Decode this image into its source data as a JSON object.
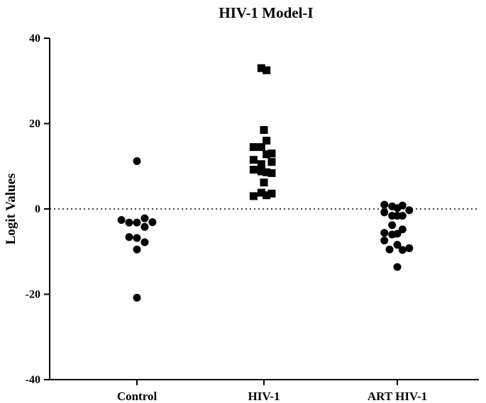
{
  "chart_data": {
    "type": "scatter",
    "title": "HIV-1 Model-I",
    "xlabel": "",
    "ylabel": "Logit Values",
    "ylim": [
      -40,
      40
    ],
    "yticks": [
      40,
      20,
      0,
      -20,
      -40
    ],
    "ytick_labels": [
      "40",
      "20",
      "0",
      "-20",
      "-40"
    ],
    "reference_line": {
      "y": 0,
      "style": "dotted"
    },
    "grid": false,
    "categories": [
      "Control",
      "HIV-1",
      "ART HIV-1"
    ],
    "series": [
      {
        "name": "Control",
        "marker": "circle",
        "points": [
          {
            "dx": 0,
            "y": 11.2
          },
          {
            "dx": -3,
            "y": -2.6
          },
          {
            "dx": -1.5,
            "y": -3.2
          },
          {
            "dx": 0,
            "y": -3.2
          },
          {
            "dx": 1.5,
            "y": -2.2
          },
          {
            "dx": 3,
            "y": -3.1
          },
          {
            "dx": 1.5,
            "y": -4.2
          },
          {
            "dx": -1.5,
            "y": -6.6
          },
          {
            "dx": 0,
            "y": -6.8
          },
          {
            "dx": 1.5,
            "y": -7.8
          },
          {
            "dx": 0,
            "y": -9.5
          },
          {
            "dx": 0,
            "y": -20.8
          }
        ]
      },
      {
        "name": "HIV-1",
        "marker": "square",
        "points": [
          {
            "dx": -0.5,
            "y": 33
          },
          {
            "dx": 0.5,
            "y": 32.5
          },
          {
            "dx": 0,
            "y": 18.5
          },
          {
            "dx": 0.5,
            "y": 16
          },
          {
            "dx": -2,
            "y": 14.5
          },
          {
            "dx": -0.5,
            "y": 14.5
          },
          {
            "dx": 1.5,
            "y": 13
          },
          {
            "dx": 0.5,
            "y": 12.8
          },
          {
            "dx": -2,
            "y": 11.5
          },
          {
            "dx": -0.5,
            "y": 10.5
          },
          {
            "dx": 1.5,
            "y": 11
          },
          {
            "dx": -2,
            "y": 9.2
          },
          {
            "dx": -0.5,
            "y": 8.8
          },
          {
            "dx": 0.5,
            "y": 8.6
          },
          {
            "dx": 1.5,
            "y": 8.4
          },
          {
            "dx": 0,
            "y": 6.2
          },
          {
            "dx": -0.5,
            "y": 3.8
          },
          {
            "dx": 1.5,
            "y": 3.6
          },
          {
            "dx": -2,
            "y": 3.0
          },
          {
            "dx": 0.5,
            "y": 3.2
          }
        ]
      },
      {
        "name": "ART HIV-1",
        "marker": "circle",
        "points": [
          {
            "dx": -2.5,
            "y": 1.0
          },
          {
            "dx": -1,
            "y": 0.6
          },
          {
            "dx": 0,
            "y": 0.2
          },
          {
            "dx": 1,
            "y": 0.8
          },
          {
            "dx": 2.3,
            "y": -0.3
          },
          {
            "dx": -2.5,
            "y": -0.8
          },
          {
            "dx": -1,
            "y": -1.6
          },
          {
            "dx": 0,
            "y": -1.6
          },
          {
            "dx": 1,
            "y": -1.6
          },
          {
            "dx": -1,
            "y": -3.8
          },
          {
            "dx": 1,
            "y": -4.8
          },
          {
            "dx": -2.5,
            "y": -5.6
          },
          {
            "dx": -1,
            "y": -6.0
          },
          {
            "dx": 0,
            "y": -5.8
          },
          {
            "dx": -2.5,
            "y": -7.4
          },
          {
            "dx": 0,
            "y": -8.4
          },
          {
            "dx": -1.5,
            "y": -9.5
          },
          {
            "dx": 1,
            "y": -9.6
          },
          {
            "dx": 2.3,
            "y": -9.2
          },
          {
            "dx": 0,
            "y": -13.6
          }
        ]
      }
    ]
  }
}
